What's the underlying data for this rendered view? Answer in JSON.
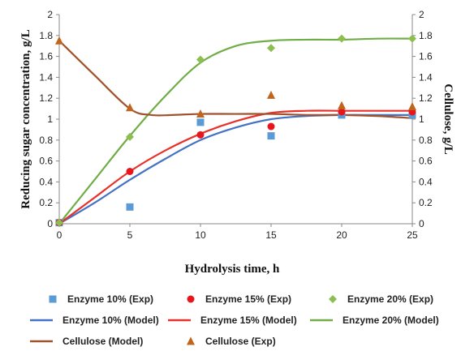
{
  "chart_data": {
    "type": "line",
    "xlabel": "Hydrolysis time, h",
    "ylabel": "Reducing sugar concentration, g/L",
    "y2label": "Cellulose, g/L",
    "xlim": [
      0,
      25
    ],
    "ylim": [
      0,
      2
    ],
    "y2lim": [
      0,
      2
    ],
    "x_ticks": [
      "0",
      "5",
      "10",
      "15",
      "20",
      "25"
    ],
    "y_ticks": [
      "0",
      "0.2",
      "0.4",
      "0.6",
      "0.8",
      "1",
      "1.2",
      "1.4",
      "1.6",
      "1.8",
      "2"
    ],
    "grid": false,
    "legend_position": "bottom",
    "series": [
      {
        "name": "Enzyme 10% (Exp)",
        "kind": "marker",
        "marker": "square",
        "color": "#5B9BD5",
        "x": [
          0,
          5,
          10,
          15,
          20,
          25
        ],
        "y": [
          0.01,
          0.16,
          0.97,
          0.84,
          1.04,
          1.04
        ]
      },
      {
        "name": "Enzyme 15% (Exp)",
        "kind": "marker",
        "marker": "circle",
        "color": "#E8151B",
        "x": [
          0,
          5,
          10,
          15,
          20,
          25
        ],
        "y": [
          0.01,
          0.5,
          0.85,
          0.93,
          1.07,
          1.07
        ]
      },
      {
        "name": "Enzyme 20% (Exp)",
        "kind": "marker",
        "marker": "diamond",
        "color": "#8CBF4F",
        "x": [
          0,
          5,
          10,
          15,
          20,
          25
        ],
        "y": [
          0.01,
          0.83,
          1.57,
          1.68,
          1.77,
          1.77
        ]
      },
      {
        "name": "Enzyme 10% (Model)",
        "kind": "line",
        "color": "#4472C4",
        "x": [
          0,
          2.5,
          5,
          7.5,
          10,
          12.5,
          15,
          17.5,
          20,
          22.5,
          25
        ],
        "y": [
          0,
          0.2,
          0.42,
          0.62,
          0.8,
          0.92,
          1.0,
          1.03,
          1.04,
          1.04,
          1.04
        ]
      },
      {
        "name": "Enzyme 15% (Model)",
        "kind": "line",
        "color": "#E8312B",
        "x": [
          0,
          2.5,
          5,
          7.5,
          10,
          12.5,
          15,
          17.5,
          20,
          22.5,
          25
        ],
        "y": [
          0,
          0.25,
          0.5,
          0.7,
          0.86,
          0.98,
          1.06,
          1.08,
          1.08,
          1.08,
          1.08
        ]
      },
      {
        "name": "Enzyme 20% (Model)",
        "kind": "line",
        "color": "#70AD47",
        "x": [
          0,
          2.5,
          5,
          7.5,
          10,
          12.5,
          15,
          17.5,
          20,
          22.5,
          25
        ],
        "y": [
          0,
          0.42,
          0.84,
          1.22,
          1.54,
          1.7,
          1.75,
          1.76,
          1.76,
          1.77,
          1.77
        ]
      },
      {
        "name": "Cellulose (Model)",
        "kind": "line",
        "color": "#A0522D",
        "x": [
          0,
          2.5,
          5,
          6.5,
          8,
          10,
          12.5,
          15,
          17.5,
          20,
          22.5,
          25
        ],
        "y": [
          1.75,
          1.42,
          1.1,
          1.04,
          1.04,
          1.05,
          1.05,
          1.05,
          1.04,
          1.04,
          1.03,
          1.01
        ]
      },
      {
        "name": "Cellulose (Exp)",
        "kind": "marker",
        "marker": "triangle",
        "color": "#C0651D",
        "x": [
          0,
          5,
          10,
          15,
          20,
          25
        ],
        "y": [
          1.75,
          1.11,
          1.05,
          1.23,
          1.13,
          1.12
        ]
      }
    ],
    "legend_order": [
      0,
      1,
      2,
      3,
      4,
      5,
      6,
      7
    ]
  }
}
